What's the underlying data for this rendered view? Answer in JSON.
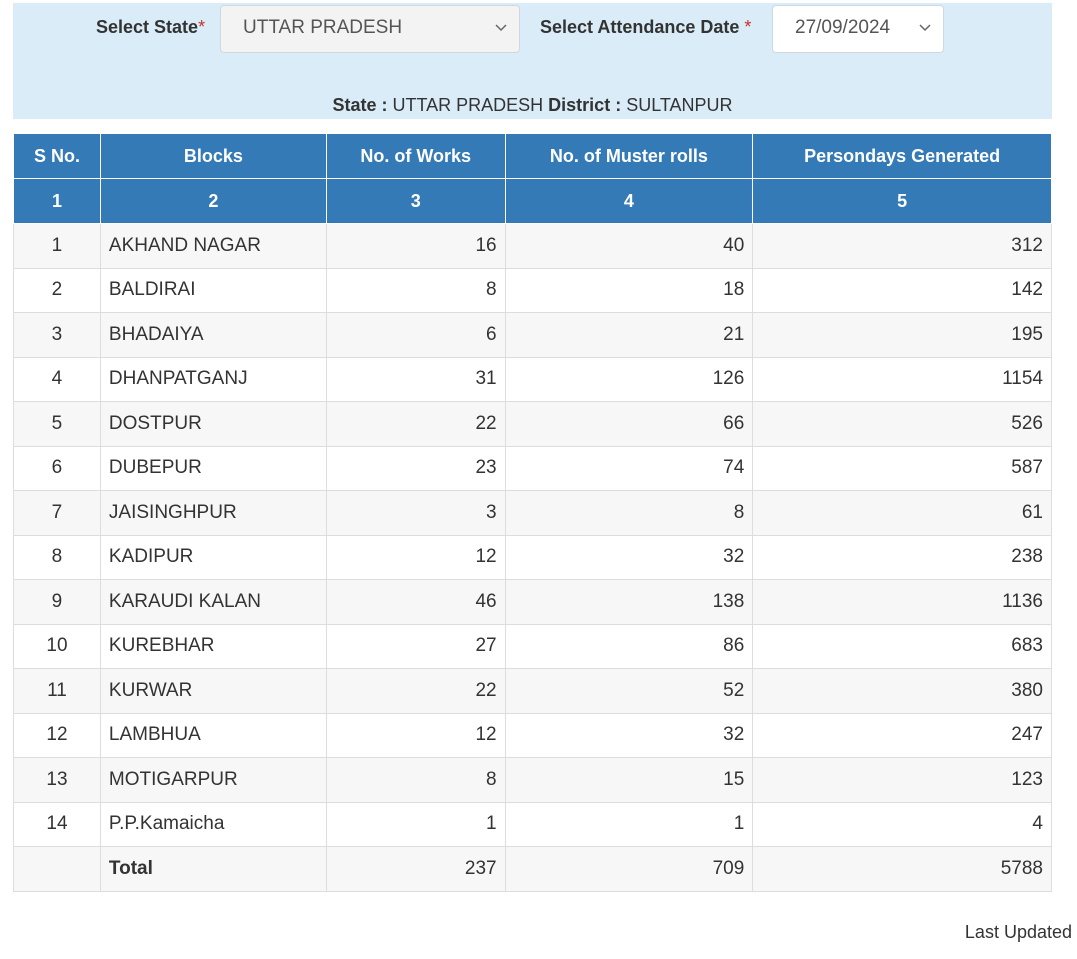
{
  "filters": {
    "state_label": "Select State",
    "state_value": "UTTAR PRADESH",
    "date_label": "Select Attendance Date ",
    "date_value": "27/09/2024",
    "required_mark": "*"
  },
  "info": {
    "state_label": "State :",
    "state_value": "UTTAR PRADESH",
    "district_label": "District :",
    "district_value": "SULTANPUR"
  },
  "table": {
    "headers": [
      "S No.",
      "Blocks",
      "No. of Works",
      "No. of Muster rolls",
      "Persondays Generated"
    ],
    "header_numbers": [
      "1",
      "2",
      "3",
      "4",
      "5"
    ],
    "rows": [
      {
        "sno": "1",
        "block": "AKHAND NAGAR",
        "works": "16",
        "muster": "40",
        "persondays": "312"
      },
      {
        "sno": "2",
        "block": "BALDIRAI",
        "works": "8",
        "muster": "18",
        "persondays": "142"
      },
      {
        "sno": "3",
        "block": "BHADAIYA",
        "works": "6",
        "muster": "21",
        "persondays": "195"
      },
      {
        "sno": "4",
        "block": "DHANPATGANJ",
        "works": "31",
        "muster": "126",
        "persondays": "1154"
      },
      {
        "sno": "5",
        "block": "DOSTPUR",
        "works": "22",
        "muster": "66",
        "persondays": "526"
      },
      {
        "sno": "6",
        "block": "DUBEPUR",
        "works": "23",
        "muster": "74",
        "persondays": "587"
      },
      {
        "sno": "7",
        "block": "JAISINGHPUR",
        "works": "3",
        "muster": "8",
        "persondays": "61"
      },
      {
        "sno": "8",
        "block": "KADIPUR",
        "works": "12",
        "muster": "32",
        "persondays": "238"
      },
      {
        "sno": "9",
        "block": "KARAUDI KALAN",
        "works": "46",
        "muster": "138",
        "persondays": "1136"
      },
      {
        "sno": "10",
        "block": "KUREBHAR",
        "works": "27",
        "muster": "86",
        "persondays": "683"
      },
      {
        "sno": "11",
        "block": "KURWAR",
        "works": "22",
        "muster": "52",
        "persondays": "380"
      },
      {
        "sno": "12",
        "block": "LAMBHUA",
        "works": "12",
        "muster": "32",
        "persondays": "247"
      },
      {
        "sno": "13",
        "block": "MOTIGARPUR",
        "works": "8",
        "muster": "15",
        "persondays": "123"
      },
      {
        "sno": "14",
        "block": "P.P.Kamaicha",
        "works": "1",
        "muster": "1",
        "persondays": "4"
      }
    ],
    "total": {
      "label": "Total",
      "works": "237",
      "muster": "709",
      "persondays": "5788"
    }
  },
  "footer": {
    "last_updated": "Last Updated"
  },
  "colors": {
    "header_bg": "#337ab7",
    "link": "#3d7db3",
    "total": "#c00000",
    "panel": "#d9ecf7"
  }
}
